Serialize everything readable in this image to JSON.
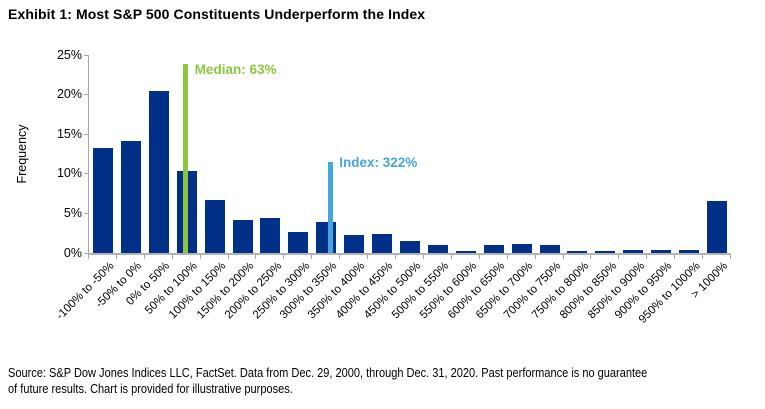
{
  "title": "Exhibit 1: Most S&P 500 Constituents Underperform the Index",
  "source": {
    "line1": "Source: S&P Dow Jones Indices LLC, FactSet. Data from Dec. 29, 2000, through Dec. 31, 2020. Past performance is no guarantee",
    "line2": "of future results. Chart is provided for illustrative purposes."
  },
  "chart_data": {
    "type": "bar",
    "title": "Exhibit 1: Most S&P 500 Constituents Underperform the Index",
    "xlabel": "",
    "ylabel": "Frequency",
    "ylim": [
      0,
      25
    ],
    "yticks": [
      0,
      5,
      10,
      15,
      20,
      25
    ],
    "ytick_suffix": "%",
    "grid": false,
    "bar_color": "#003087",
    "axis_color": "#a6a6a6",
    "categories": [
      "-100% to -50%",
      "-50% to 0%",
      "0% to 50%",
      "50% to 100%",
      "100% to 150%",
      "150% to 200%",
      "200% to 250%",
      "250% to 300%",
      "300% to 350%",
      "350% to 400%",
      "400% to 450%",
      "450% to 500%",
      "500% to 550%",
      "550% to 600%",
      "600% to 650%",
      "650% to 700%",
      "700% to 750%",
      "750% to 800%",
      "800% to 850%",
      "850% to 900%",
      "900% to 950%",
      "950% to 1000%",
      "> 1000%"
    ],
    "values": [
      13.2,
      14.1,
      20.5,
      10.4,
      6.7,
      4.2,
      4.4,
      2.7,
      3.9,
      2.3,
      2.4,
      1.5,
      1.0,
      0.2,
      1.0,
      1.2,
      1.0,
      0.3,
      0.2,
      0.4,
      0.4,
      0.4,
      6.6
    ],
    "annotations": [
      {
        "name": "median",
        "label": "Median: 63%",
        "value": 63,
        "color": "#8CC63E",
        "category_index": 3,
        "x_offset": 0,
        "line_height_pct": 23.9,
        "label_dy": -2
      },
      {
        "name": "index",
        "label": "Index: 322%",
        "value": 322,
        "color": "#45A6DC",
        "category_index": 8,
        "x_offset": 5,
        "line_height_pct": 11.5,
        "label_dy": -7
      }
    ]
  }
}
